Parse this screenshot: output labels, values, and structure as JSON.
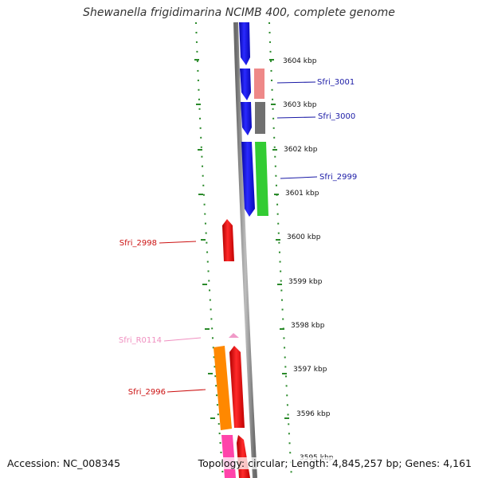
{
  "title": "Shewanella frigidimarina NCIMB 400, complete genome",
  "footer": {
    "accession": "Accession: NC_008345",
    "summary": "Topology: circular; Length: 4,845,257 bp; Genes: 4,161"
  },
  "scale_ticks": [
    {
      "label": "3604 kbp"
    },
    {
      "label": "3603 kbp"
    },
    {
      "label": "3602 kbp"
    },
    {
      "label": "3601 kbp"
    },
    {
      "label": "3600 kbp"
    },
    {
      "label": "3599 kbp"
    },
    {
      "label": "3598 kbp"
    },
    {
      "label": "3597 kbp"
    },
    {
      "label": "3596 kbp"
    },
    {
      "label": "3595 kbp"
    }
  ],
  "gene_labels": [
    {
      "name": "Sfri_3001",
      "color": "#1a1aa6"
    },
    {
      "name": "Sfri_3000",
      "color": "#1a1aa6"
    },
    {
      "name": "Sfri_2999",
      "color": "#1a1aa6"
    },
    {
      "name": "Sfri_2998",
      "color": "#cc1111"
    },
    {
      "name": "Sfri_R0114",
      "color": "#f08fc0"
    },
    {
      "name": "Sfri_2996",
      "color": "#cc1111"
    }
  ],
  "colors": {
    "strand_blue": "#1010e0",
    "strand_red": "#ee1111",
    "backbone": "#8a8a8a",
    "ruler_dots": "#2a8a2a",
    "gene_pink": "#ee8888",
    "gene_gray": "#707070",
    "gene_green": "#33cc33",
    "gene_orange": "#ff8800",
    "gene_magenta": "#ff44aa",
    "rna_pink": "#f09ac8"
  }
}
